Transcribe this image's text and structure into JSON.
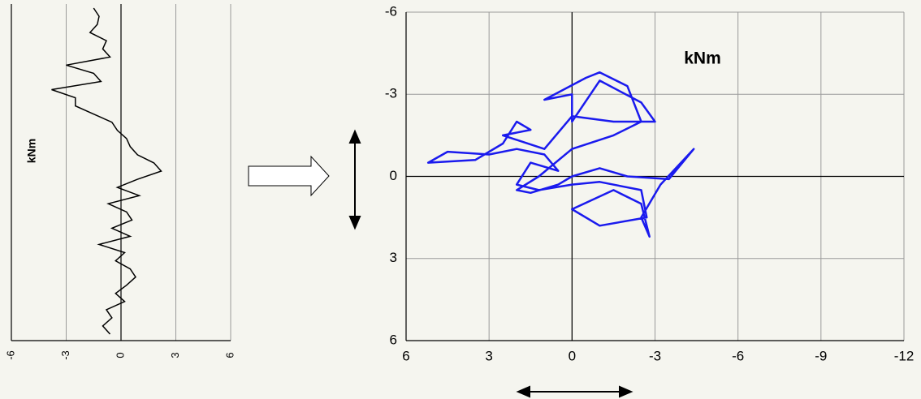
{
  "chart_data": [
    {
      "type": "trace",
      "ylabel": "kNm",
      "color": "#000000",
      "xlim": [
        -6,
        6
      ],
      "xticks": [
        -6,
        -3,
        0,
        3,
        6
      ],
      "grid": true,
      "values": [
        -1.5,
        -1.2,
        -1.3,
        -1.7,
        -0.8,
        -1.0,
        -0.6,
        -3.0,
        -1.5,
        -1.1,
        -3.8,
        -2.5,
        -2.5,
        -1.5,
        -0.5,
        -0.2,
        0.3,
        0.5,
        0.9,
        1.8,
        2.2,
        0.9,
        -0.2,
        1.0,
        -0.7,
        0.3,
        0.6,
        -0.5,
        0.5,
        -1.2,
        0.2,
        -0.3,
        0.5,
        0.8,
        0.3,
        -0.3,
        0.2,
        -0.8,
        -0.5,
        -1.0,
        -0.6
      ]
    },
    {
      "type": "trajectory",
      "title": "kNm",
      "xlim": [
        6,
        -12
      ],
      "xticks": [
        6,
        3,
        0,
        -3,
        -6,
        -9,
        -12
      ],
      "ylim": [
        6,
        -6
      ],
      "yticks": [
        -6,
        -3,
        0,
        3,
        6
      ],
      "grid": true,
      "series": [
        {
          "color": "#1a1aee",
          "x": [
            0,
            -1,
            -2,
            -3.5,
            -4.4,
            -3.2,
            -2.5,
            -2.8,
            -2.5,
            -1.5,
            0,
            -1,
            -2.7,
            -2.5,
            -1,
            0,
            1.2,
            2,
            1.5,
            0.5,
            1,
            2,
            3,
            4.5,
            5.2,
            3.5,
            2.5,
            2,
            1.5,
            2.5,
            1,
            0,
            -1.5,
            -3,
            -2.5,
            -1,
            0,
            0,
            1,
            -0.5,
            -1,
            -2,
            -2.5,
            -1.5,
            0,
            1.2,
            2,
            1.5,
            0.5,
            0
          ],
          "y": [
            0,
            -0.3,
            0,
            0.1,
            -1.0,
            0.3,
            1.5,
            2.2,
            1,
            0.5,
            1.2,
            1.8,
            1.5,
            0.5,
            0.2,
            0.3,
            0.5,
            0.3,
            -0.5,
            -0.2,
            -0.8,
            -1.0,
            -0.8,
            -0.9,
            -0.5,
            -0.6,
            -1.2,
            -2.0,
            -1.7,
            -1.5,
            -1.0,
            -2.2,
            -2.0,
            -2.0,
            -2.7,
            -3.5,
            -2.0,
            -3.0,
            -2.8,
            -3.6,
            -3.8,
            -3.3,
            -2.0,
            -1.5,
            -1.0,
            0,
            0.5,
            0.6,
            0.3,
            0
          ]
        }
      ]
    }
  ]
}
